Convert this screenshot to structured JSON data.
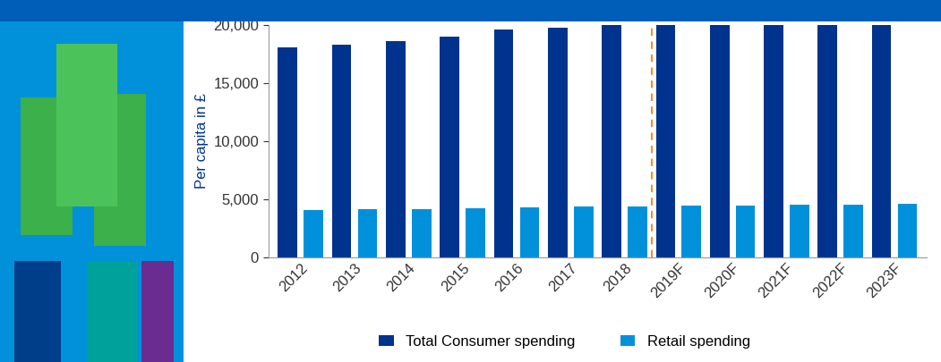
{
  "chart_data": {
    "type": "bar",
    "y_label": "Per capita in £",
    "categories": [
      "2012",
      "2013",
      "2014",
      "2015",
      "2016",
      "2017",
      "2018",
      "2019F",
      "2020F",
      "2021F",
      "2022F",
      "2023F"
    ],
    "series": [
      {
        "name": "Total Consumer spending",
        "color": "#00338D",
        "values": [
          18100,
          18350,
          18650,
          19050,
          19650,
          19800,
          20000,
          20000,
          20000,
          20000,
          20000,
          20000
        ]
      },
      {
        "name": "Retail spending",
        "color": "#0091DA",
        "values": [
          4080,
          4120,
          4150,
          4200,
          4280,
          4340,
          4380,
          4420,
          4450,
          4480,
          4520,
          4560
        ]
      }
    ],
    "ylim": [
      0,
      20000
    ],
    "yticks": [
      0,
      {
        "value": 5000,
        "label": "5,000"
      },
      {
        "value": 10000,
        "label": "10,000"
      },
      {
        "value": 15000,
        "label": "15,000"
      },
      {
        "value": 20000,
        "label": "20,000"
      }
    ],
    "legend": "lower center",
    "grid": false
  }
}
